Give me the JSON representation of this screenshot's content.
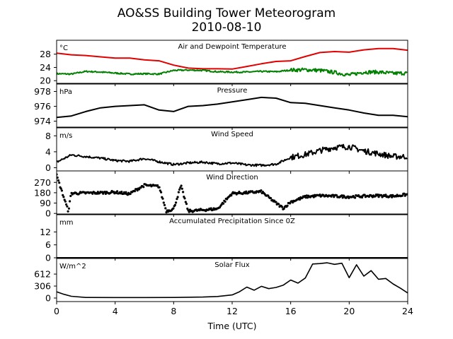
{
  "figure": {
    "title": "AO&SS Building Tower Meteorogram",
    "date": "2010-08-10",
    "xlabel": "Time (UTC)"
  },
  "chart_data": {
    "type": "line",
    "x_range": [
      0,
      24
    ],
    "x_ticks": [
      0,
      4,
      8,
      12,
      16,
      20,
      24
    ],
    "panels": [
      {
        "id": "temperature",
        "title": "Air and Dewpoint Temperature",
        "unit": "°C",
        "ylim": [
          19.2,
          32.2
        ],
        "y_ticks": [
          20,
          24,
          28
        ],
        "series": [
          {
            "color": "#e00000",
            "width": 2,
            "x": [
              0,
              1,
              2,
              3,
              4,
              5,
              6,
              7,
              8,
              9,
              10,
              11,
              12,
              13,
              14,
              15,
              16,
              17,
              18,
              19,
              20,
              21,
              22,
              23,
              24
            ],
            "y": [
              28.3,
              27.8,
              27.6,
              27.2,
              26.8,
              26.8,
              26.3,
              26.0,
              24.7,
              23.8,
              23.6,
              23.6,
              23.5,
              24.3,
              25.1,
              25.8,
              26.0,
              27.3,
              28.5,
              28.8,
              28.6,
              29.3,
              29.7,
              29.7,
              29.2
            ]
          },
          {
            "color": "#008000",
            "width": 2,
            "noise": 0.7,
            "x": [
              0,
              1,
              2,
              3,
              4,
              5,
              6,
              7,
              8,
              9,
              10,
              11,
              12,
              13,
              14,
              15,
              16,
              17,
              18,
              19,
              20,
              21,
              22,
              23,
              24
            ],
            "y": [
              22.1,
              22.0,
              22.8,
              22.6,
              22.3,
              22.0,
              22.1,
              22.0,
              23.1,
              23.2,
              23.1,
              22.7,
              22.6,
              22.6,
              22.8,
              22.7,
              23.2,
              23.3,
              23.1,
              22.5,
              21.7,
              22.6,
              22.6,
              22.2,
              22.3
            ]
          }
        ]
      },
      {
        "id": "pressure",
        "title": "Pressure",
        "unit": "hPa",
        "ylim": [
          973.2,
          979.0
        ],
        "y_ticks": [
          974,
          976,
          978
        ],
        "series": [
          {
            "color": "#000000",
            "width": 2,
            "x": [
              0,
              1,
              2,
              3,
              4,
              5,
              6,
              7,
              8,
              9,
              10,
              11,
              12,
              13,
              14,
              15,
              16,
              17,
              18,
              19,
              20,
              21,
              22,
              23,
              24
            ],
            "y": [
              974.5,
              974.7,
              975.3,
              975.8,
              976.0,
              976.1,
              976.2,
              975.5,
              975.3,
              976.0,
              976.1,
              976.3,
              976.6,
              976.9,
              977.2,
              977.1,
              976.5,
              976.4,
              976.1,
              975.8,
              975.5,
              975.1,
              974.8,
              974.8,
              974.6
            ]
          }
        ]
      },
      {
        "id": "wind_speed",
        "title": "Wind Speed",
        "unit": "m/s",
        "ylim": [
          -0.8,
          10.0
        ],
        "y_ticks": [
          0,
          4,
          8
        ],
        "series": [
          {
            "color": "#000000",
            "width": 2,
            "noise": 0.9,
            "x": [
              0,
              1,
              2,
              3,
              4,
              5,
              6,
              7,
              8,
              9,
              10,
              11,
              12,
              13,
              14,
              15,
              16,
              17,
              18,
              19,
              20,
              21,
              22,
              23,
              24
            ],
            "y": [
              1.4,
              3.2,
              2.8,
              2.4,
              1.8,
              1.6,
              2.3,
              1.5,
              0.8,
              1.2,
              1.4,
              1.0,
              1.2,
              0.7,
              0.6,
              0.9,
              2.6,
              3.3,
              4.3,
              5.1,
              5.3,
              4.2,
              3.5,
              2.8,
              2.8
            ]
          }
        ]
      },
      {
        "id": "wind_direction",
        "title": "Wind Direction",
        "unit": "",
        "ylim": [
          -5,
          370
        ],
        "y_ticks": [
          0,
          90,
          180,
          270
        ],
        "scatter": true,
        "series": [
          {
            "color": "#000000",
            "width": 2,
            "x": [
              0,
              0.8,
              1,
              3,
              4,
              5,
              5.5,
              6,
              7,
              7.5,
              8,
              8.5,
              9,
              10,
              11,
              12,
              13,
              14,
              15,
              15.5,
              16,
              17,
              18,
              19,
              20,
              21,
              22,
              23,
              24
            ],
            "y": [
              330,
              20,
              175,
              180,
              185,
              170,
              210,
              245,
              235,
              20,
              40,
              240,
              20,
              30,
              40,
              175,
              180,
              190,
              90,
              45,
              100,
              145,
              155,
              150,
              145,
              150,
              155,
              150,
              165
            ]
          }
        ]
      },
      {
        "id": "precipitation",
        "title": "Accumulated Precipitation Since 0Z",
        "unit": "mm",
        "ylim": [
          0,
          20
        ],
        "y_ticks": [
          0,
          6,
          12
        ],
        "series": [
          {
            "color": "#000000",
            "width": 2,
            "x": [
              0,
              24
            ],
            "y": [
              0,
              0
            ]
          }
        ]
      },
      {
        "id": "solar_flux",
        "title": "Solar Flux",
        "unit": "W/m^2",
        "ylim": [
          -90,
          1010
        ],
        "y_ticks": [
          0,
          306,
          612
        ],
        "series": [
          {
            "color": "#000000",
            "width": 1.6,
            "x": [
              0,
              0.5,
              1,
              2,
              4,
              6,
              8,
              10,
              11,
              12,
              12.5,
              13,
              13.5,
              14,
              14.5,
              15,
              15.5,
              16,
              16.5,
              17,
              17.5,
              18,
              18.5,
              19,
              19.5,
              20,
              20.5,
              21,
              21.5,
              22,
              22.5,
              23,
              23.5,
              24
            ],
            "y": [
              160,
              95,
              45,
              15,
              12,
              12,
              15,
              25,
              40,
              80,
              160,
              280,
              200,
              300,
              240,
              270,
              330,
              460,
              380,
              510,
              870,
              880,
              900,
              860,
              890,
              520,
              850,
              560,
              700,
              480,
              500,
              360,
              250,
              130
            ]
          }
        ]
      }
    ]
  }
}
